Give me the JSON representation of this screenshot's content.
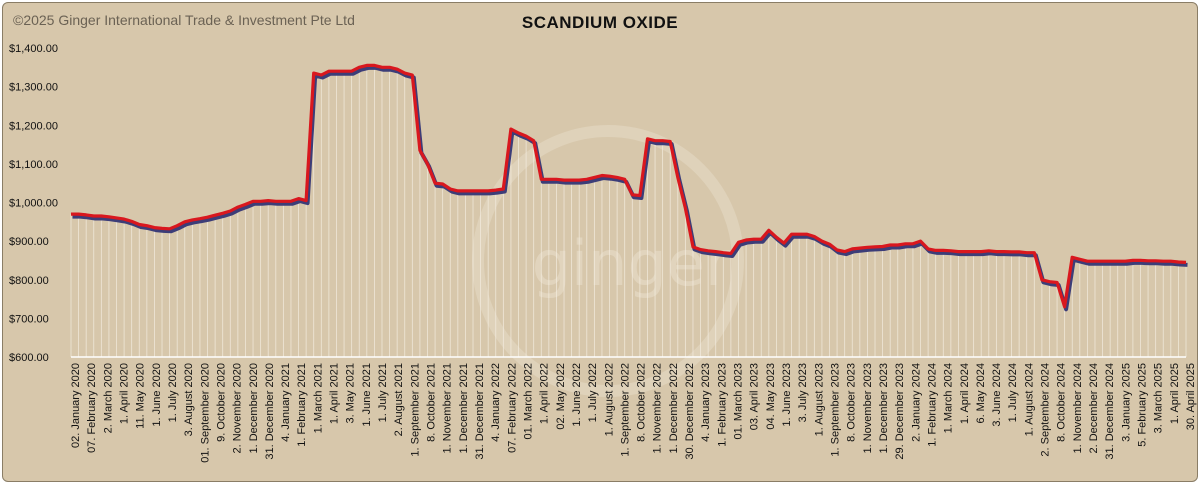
{
  "copyright": "©2025 Ginger International Trade & Investment Pte Ltd",
  "watermark": "ginger",
  "colors": {
    "background": "#d7c7ab",
    "line": "#d9171e",
    "shadow": "#3c3d78",
    "drop": "#f4ede0",
    "axis": "#ffffff"
  },
  "chart_data": {
    "type": "line",
    "title": "SCANDIUM OXIDE",
    "ylim": [
      600,
      1400
    ],
    "yticks": [
      "$600.00",
      "$700.00",
      "$800.00",
      "$900.00",
      "$1,000.00",
      "$1,100.00",
      "$1,200.00",
      "$1,300.00",
      "$1,400.00"
    ],
    "ytick_values": [
      600,
      700,
      800,
      900,
      1000,
      1100,
      1200,
      1300,
      1400
    ],
    "grid": false,
    "x_labels": [
      "02. January 2020",
      "07. February 2020",
      "2. March 2020",
      "1. April 2020",
      "11. May 2020",
      "1. June 2020",
      "1. July 2020",
      "3. August 2020",
      "01. September 2020",
      "9. October 2020",
      "2. November 2020",
      "1. December 2020",
      "31. December 2020",
      "4. January 2021",
      "1. February 2021",
      "1. March 2021",
      "1. April 2021",
      "3. May 2021",
      "1. June 2021",
      "1. July 2021",
      "2. August 2021",
      "1. September 2021",
      "8. October 2021",
      "1. November 2021",
      "1. December 2021",
      "31. December 2021",
      "4. January 2022",
      "07. February 2022",
      "01. March 2022",
      "1. April 2022",
      "02. May 2022",
      "1. June 2022",
      "1. July 2022",
      "1. August 2022",
      "1. September 2022",
      "8. October 2022",
      "1. November 2022",
      "1. December 2022",
      "30. December 2022",
      "4. January 2023",
      "1. February 2023",
      "01. March 2023",
      "03. April 2023",
      "04. May 2023",
      "1. June 2023",
      "3. July 2023",
      "1. August 2023",
      "1. September 2023",
      "8. October 2023",
      "1. November 2023",
      "1. December 2023",
      "29. December 2023",
      "2. January 2024",
      "1. February 2024",
      "1. March 2024",
      "1. April 2024",
      "6. May 2024",
      "3. June 2024",
      "1. July 2024",
      "1. August 2024",
      "2. September 2024",
      "8. October 2024",
      "1. November 2024",
      "2. December 2024",
      "31. December 2024",
      "3. January 2025",
      "5. February 2025",
      "3. March 2025",
      "1. April 2025",
      "30. April 2025"
    ],
    "series": [
      {
        "values": [
          970,
          970,
          968,
          965,
          965,
          963,
          960,
          957,
          951,
          943,
          940,
          935,
          933,
          932,
          940,
          950,
          955,
          958,
          962,
          967,
          972,
          978,
          988,
          995,
          1003,
          1003,
          1005,
          1003,
          1003,
          1003,
          1010,
          1005,
          1335,
          1330,
          1340,
          1340,
          1340,
          1340,
          1350,
          1355,
          1355,
          1350,
          1350,
          1345,
          1335,
          1330,
          1135,
          1100,
          1050,
          1048,
          1035,
          1030,
          1030,
          1030,
          1030,
          1030,
          1032,
          1035,
          1190,
          1180,
          1172,
          1160,
          1060,
          1060,
          1060,
          1058,
          1058,
          1058,
          1060,
          1065,
          1070,
          1068,
          1065,
          1060,
          1020,
          1018,
          1165,
          1160,
          1160,
          1158,
          1065,
          985,
          885,
          878,
          875,
          873,
          870,
          868,
          897,
          903,
          905,
          905,
          928,
          910,
          895,
          918,
          918,
          918,
          912,
          900,
          892,
          877,
          873,
          880,
          882,
          884,
          885,
          886,
          890,
          890,
          893,
          893,
          900,
          880,
          876,
          876,
          875,
          873,
          873,
          873,
          873,
          875,
          873,
          873,
          872,
          872,
          870,
          870,
          800,
          795,
          793,
          730,
          858,
          853,
          848,
          848,
          848,
          848,
          848,
          848,
          850,
          850,
          849,
          849,
          848,
          848,
          846,
          845
        ]
      }
    ]
  }
}
